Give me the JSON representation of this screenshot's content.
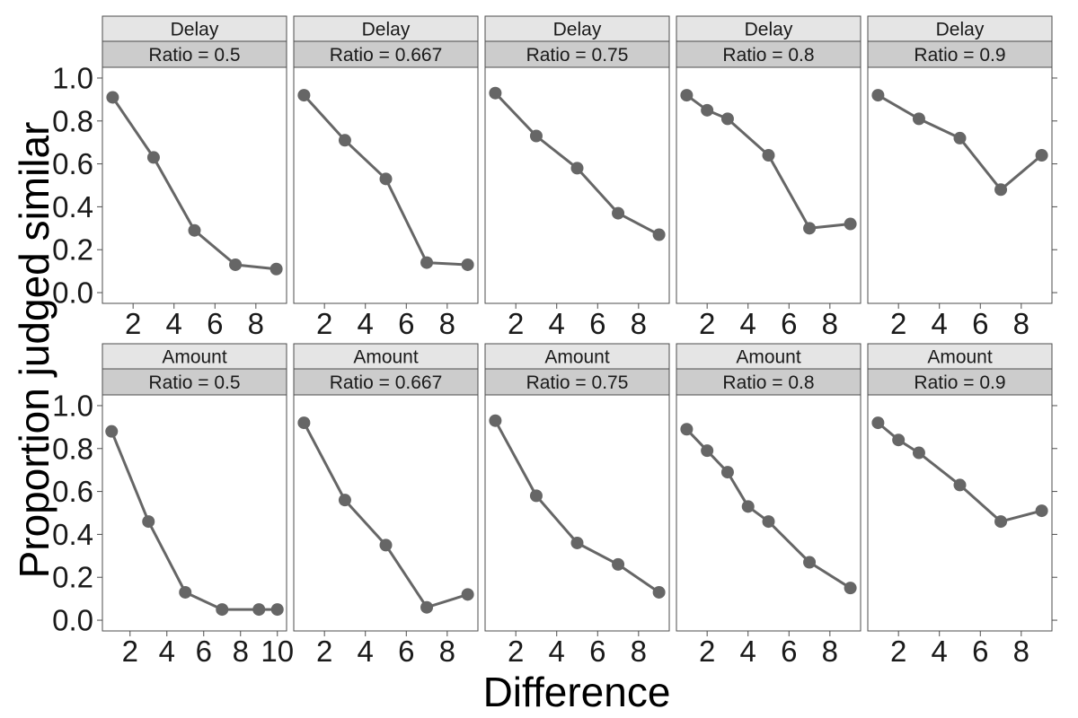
{
  "chart_data": {
    "type": "line",
    "xlabel": "Difference",
    "ylabel": "Proportion judged similar",
    "ylim": [
      -0.05,
      1.05
    ],
    "yticks": [
      0.0,
      0.2,
      0.4,
      0.6,
      0.8,
      1.0
    ],
    "ytick_labels": [
      "0.0",
      "0.2",
      "0.4",
      "0.6",
      "0.8",
      "1.0"
    ],
    "grid": false,
    "legend": "none",
    "colors": {
      "series": "#666666",
      "strip_top": "#e5e5e5",
      "strip_bottom": "#cccccc",
      "border": "#4d4d4d"
    },
    "rows": [
      {
        "label": "Delay",
        "panels": [
          {
            "strip_top": "Delay",
            "strip_bottom": "Ratio = 0.5",
            "xlim": [
              0.5,
              9.5
            ],
            "xticks": [
              2,
              4,
              6,
              8
            ],
            "xtick_labels": [
              "2",
              "4",
              "6",
              "8"
            ],
            "x": [
              1,
              3,
              5,
              7,
              9
            ],
            "y": [
              0.91,
              0.63,
              0.29,
              0.13,
              0.11
            ]
          },
          {
            "strip_top": "Delay",
            "strip_bottom": "Ratio = 0.667",
            "xlim": [
              0.5,
              9.5
            ],
            "xticks": [
              2,
              4,
              6,
              8
            ],
            "xtick_labels": [
              "2",
              "4",
              "6",
              "8"
            ],
            "x": [
              1,
              3,
              5,
              7,
              9
            ],
            "y": [
              0.92,
              0.71,
              0.53,
              0.14,
              0.13
            ]
          },
          {
            "strip_top": "Delay",
            "strip_bottom": "Ratio = 0.75",
            "xlim": [
              0.5,
              9.5
            ],
            "xticks": [
              2,
              4,
              6,
              8
            ],
            "xtick_labels": [
              "2",
              "4",
              "6",
              "8"
            ],
            "x": [
              1,
              3,
              5,
              7,
              9
            ],
            "y": [
              0.93,
              0.73,
              0.58,
              0.37,
              0.27
            ]
          },
          {
            "strip_top": "Delay",
            "strip_bottom": "Ratio = 0.8",
            "xlim": [
              0.5,
              9.5
            ],
            "xticks": [
              2,
              4,
              6,
              8
            ],
            "xtick_labels": [
              "2",
              "4",
              "6",
              "8"
            ],
            "x": [
              1,
              2,
              3,
              5,
              7,
              9
            ],
            "y": [
              0.92,
              0.85,
              0.81,
              0.64,
              0.3,
              0.32
            ]
          },
          {
            "strip_top": "Delay",
            "strip_bottom": "Ratio = 0.9",
            "xlim": [
              0.5,
              9.5
            ],
            "xticks": [
              2,
              4,
              6,
              8
            ],
            "xtick_labels": [
              "2",
              "4",
              "6",
              "8"
            ],
            "x": [
              1,
              3,
              5,
              7,
              9
            ],
            "y": [
              0.92,
              0.81,
              0.72,
              0.48,
              0.64
            ]
          }
        ]
      },
      {
        "label": "Amount",
        "panels": [
          {
            "strip_top": "Amount",
            "strip_bottom": "Ratio = 0.5",
            "xlim": [
              0.5,
              10.5
            ],
            "xticks": [
              2,
              4,
              6,
              8,
              10
            ],
            "xtick_labels": [
              "2",
              "4",
              "6",
              "8",
              "10"
            ],
            "x": [
              1,
              3,
              5,
              7,
              9,
              10
            ],
            "y": [
              0.88,
              0.46,
              0.13,
              0.05,
              0.05,
              0.05
            ]
          },
          {
            "strip_top": "Amount",
            "strip_bottom": "Ratio = 0.667",
            "xlim": [
              0.5,
              9.5
            ],
            "xticks": [
              2,
              4,
              6,
              8
            ],
            "xtick_labels": [
              "2",
              "4",
              "6",
              "8"
            ],
            "x": [
              1,
              3,
              5,
              7,
              9
            ],
            "y": [
              0.92,
              0.56,
              0.35,
              0.06,
              0.12
            ]
          },
          {
            "strip_top": "Amount",
            "strip_bottom": "Ratio = 0.75",
            "xlim": [
              0.5,
              9.5
            ],
            "xticks": [
              2,
              4,
              6,
              8
            ],
            "xtick_labels": [
              "2",
              "4",
              "6",
              "8"
            ],
            "x": [
              1,
              3,
              5,
              7,
              9
            ],
            "y": [
              0.93,
              0.58,
              0.36,
              0.26,
              0.13
            ]
          },
          {
            "strip_top": "Amount",
            "strip_bottom": "Ratio = 0.8",
            "xlim": [
              0.5,
              9.5
            ],
            "xticks": [
              2,
              4,
              6,
              8
            ],
            "xtick_labels": [
              "2",
              "4",
              "6",
              "8"
            ],
            "x": [
              1,
              2,
              3,
              4,
              5,
              7,
              9
            ],
            "y": [
              0.89,
              0.79,
              0.69,
              0.53,
              0.46,
              0.27,
              0.15
            ]
          },
          {
            "strip_top": "Amount",
            "strip_bottom": "Ratio = 0.9",
            "xlim": [
              0.5,
              9.5
            ],
            "xticks": [
              2,
              4,
              6,
              8
            ],
            "xtick_labels": [
              "2",
              "4",
              "6",
              "8"
            ],
            "x": [
              1,
              2,
              3,
              5,
              7,
              9
            ],
            "y": [
              0.92,
              0.84,
              0.78,
              0.63,
              0.46,
              0.51
            ]
          }
        ]
      }
    ]
  }
}
